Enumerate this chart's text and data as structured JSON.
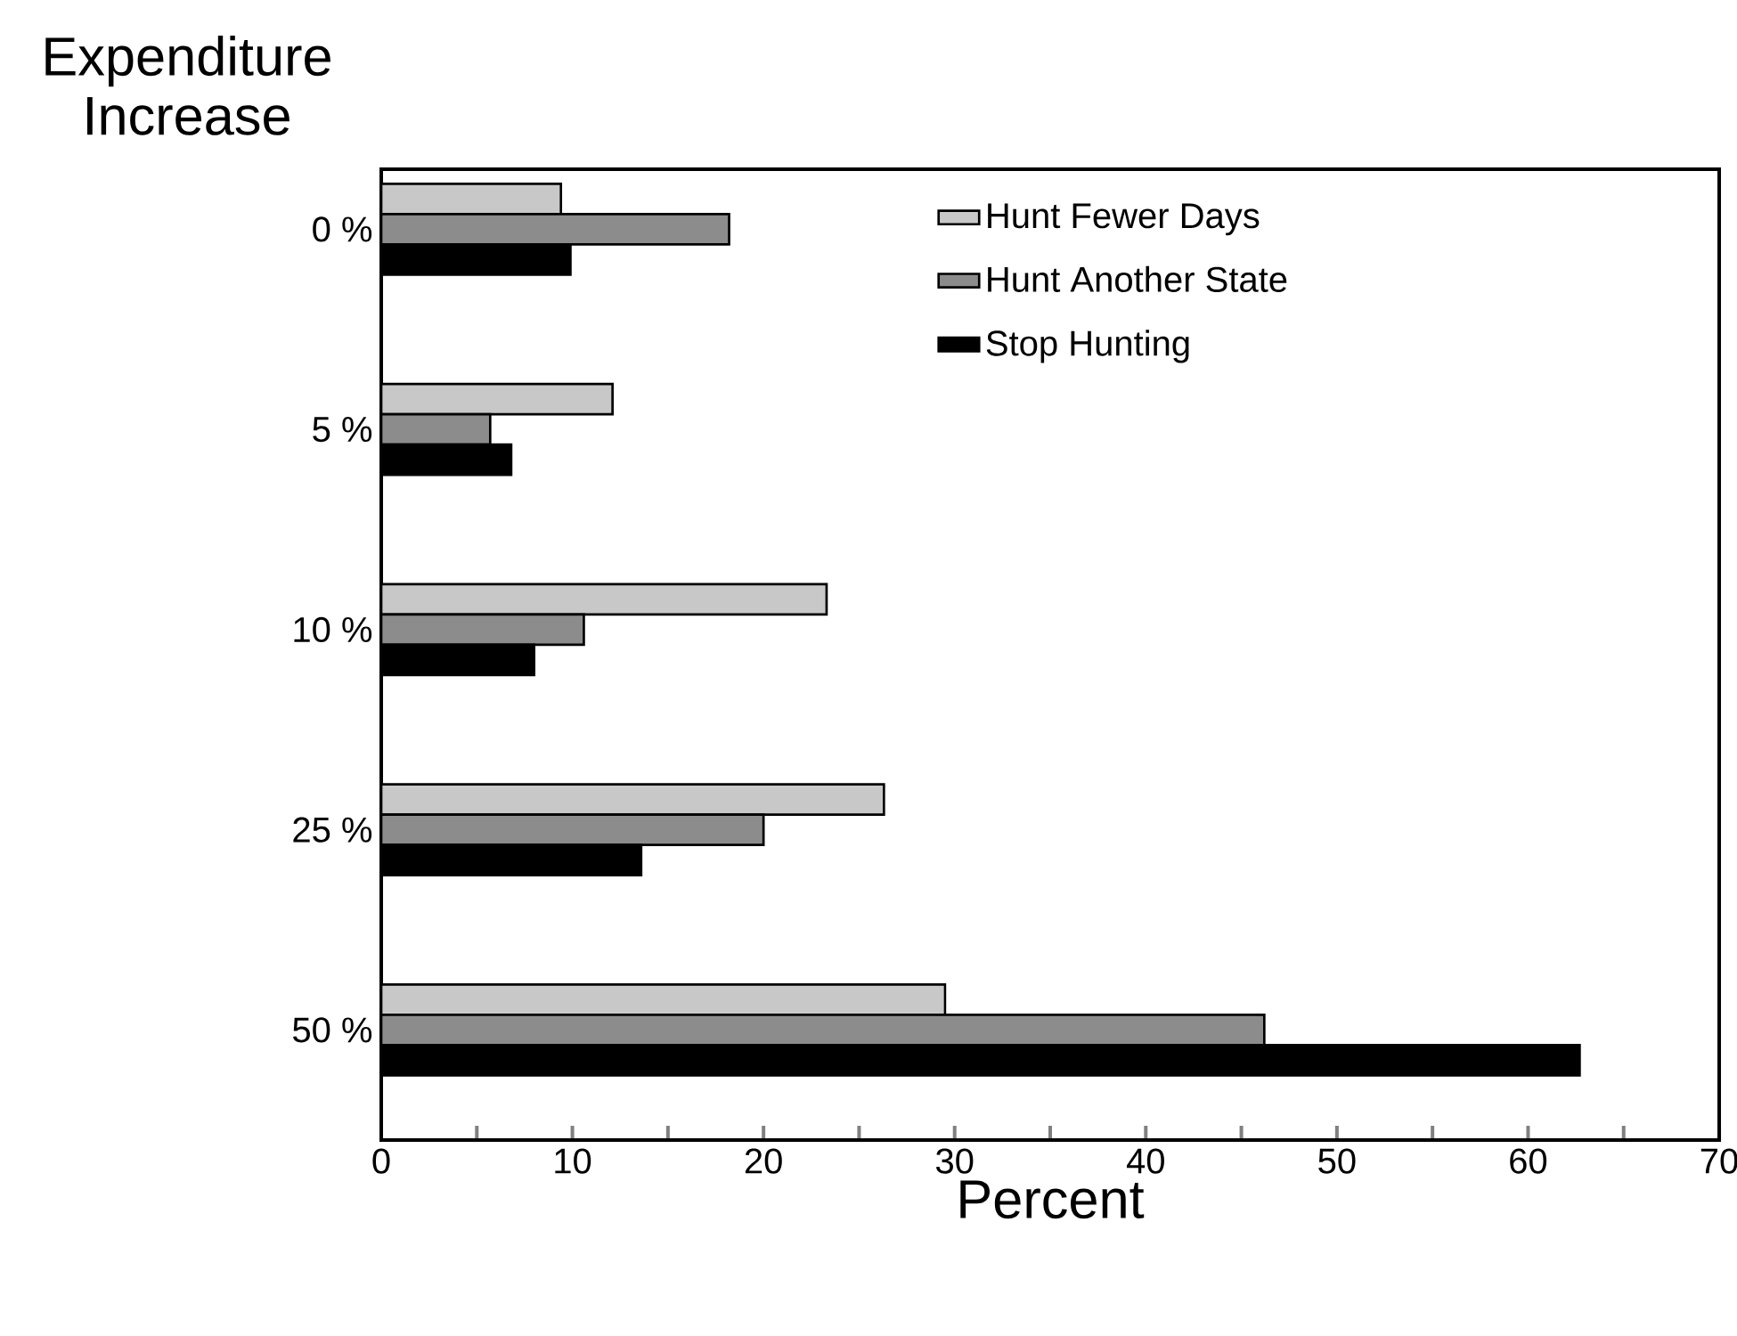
{
  "chart_data": {
    "type": "bar",
    "orientation": "horizontal",
    "xlabel": "Percent",
    "ylabel": "Expenditure Increase",
    "categories": [
      "0 %",
      "5 %",
      "10 %",
      "25 %",
      "50 %"
    ],
    "series": [
      {
        "name": "Hunt Fewer Days",
        "color": "#c8c8c8",
        "values": [
          9.4,
          12.1,
          23.3,
          26.3,
          29.5
        ]
      },
      {
        "name": "Hunt Another State",
        "color": "#8c8c8c",
        "values": [
          18.2,
          5.7,
          10.6,
          20.0,
          46.2
        ]
      },
      {
        "name": "Stop Hunting",
        "color": "#000000",
        "values": [
          9.9,
          6.8,
          8.0,
          13.6,
          62.7
        ]
      }
    ],
    "xlim": [
      0,
      70
    ],
    "xticks": [
      0,
      {
        "value": 5,
        "label": null
      },
      10,
      {
        "value": 15,
        "label": null
      },
      20,
      {
        "value": 25,
        "label": null
      },
      30,
      {
        "value": 35,
        "label": null
      },
      40,
      {
        "value": 45,
        "label": null
      },
      50,
      {
        "value": 55,
        "label": null
      },
      60,
      {
        "value": 65,
        "label": null
      },
      70
    ],
    "grid": false,
    "legend": "top right"
  }
}
